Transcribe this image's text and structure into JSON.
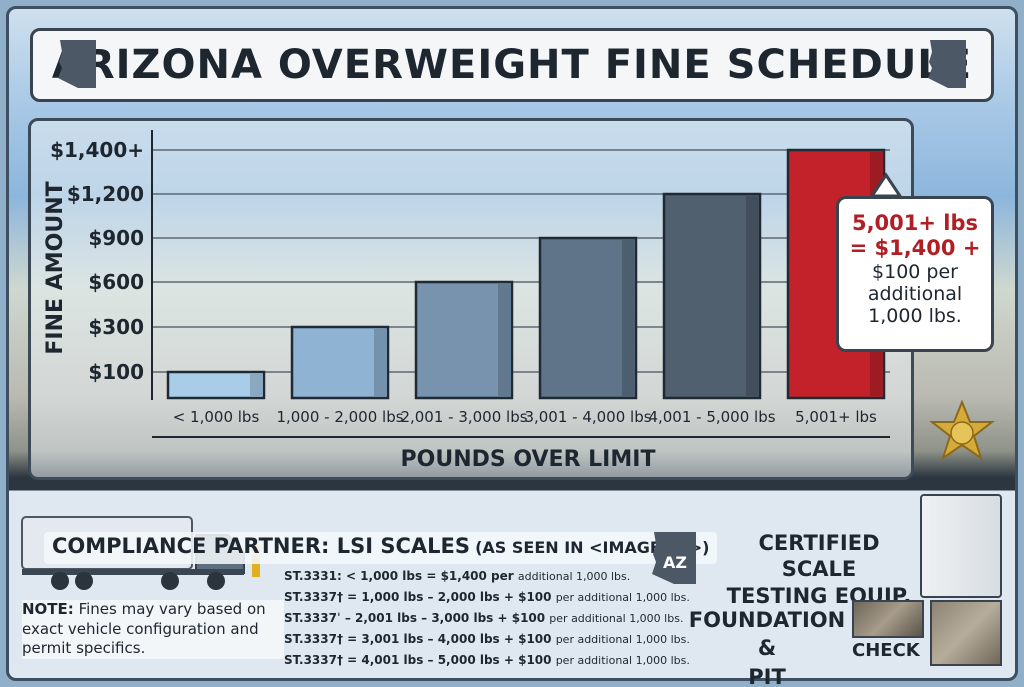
{
  "header": {
    "title": "ARIZONA OVERWEIGHT FINE SCHEDULE"
  },
  "chart_data": {
    "type": "bar",
    "title": "ARIZONA OVERWEIGHT FINE SCHEDULE",
    "xlabel": "POUNDS OVER LIMIT",
    "ylabel": "FINE AMOUNT",
    "categories": [
      "< 1,000 lbs",
      "1,000 - 2,000 lbs",
      "2,001 - 3,000 lbs",
      "3,001 - 4,000 lbs",
      "4,001 - 5,000 lbs",
      "5,001+ lbs"
    ],
    "values": [
      100,
      300,
      600,
      900,
      1200,
      1400
    ],
    "y_ticks": [
      100,
      300,
      600,
      900,
      1200,
      1400
    ],
    "y_tick_labels": [
      "$100",
      "$300",
      "$600",
      "$900",
      "$1,200",
      "$1,400+"
    ],
    "highlight_index": 5,
    "colors": {
      "bar_0": "#a9cde9",
      "bar_1": "#8fb3d3",
      "bar_2": "#7793ae",
      "bar_3": "#5f7488",
      "bar_4": "#51606f",
      "bar_highlight": "#c3222a"
    },
    "grid": true
  },
  "callout": {
    "line1": "5,001+ lbs",
    "line2": "= $1,400 +",
    "line3": "$100 per",
    "line4": "additional",
    "line5": "1,000 lbs."
  },
  "footer": {
    "partner_main": "COMPLIANCE PARTNER: LSI SCALES",
    "partner_sub": "(AS SEEN IN <IMAGE 37>)",
    "note_label": "NOTE:",
    "note_text": " Fines may vary based on exact vehicle configuration and permit specifics.",
    "statutes": [
      {
        "prefix": "ST.3331: < 1,000 lbs = $1,400 per ",
        "suffix": " additional 1,000 lbs."
      },
      {
        "prefix": "ST.3337† = 1,000 lbs – 2,000 lbs + $100 ",
        "suffix": "per additional 1,000 lbs."
      },
      {
        "prefix": "ST.3337ˈ – 2,001 lbs – 3,000 lbs + $100 ",
        "suffix": "per additional 1,000 lbs."
      },
      {
        "prefix": "ST.3337† = 3,001 lbs – 4,000 lbs + $100 ",
        "suffix": "per additional 1,000 lbs."
      },
      {
        "prefix": "ST.3337† = 4,001 lbs – 5,000 lbs + $100 ",
        "suffix": "per additional 1,000 lbs."
      }
    ],
    "az_badge": "AZ",
    "certified_line1": "CERTIFIED SCALE",
    "certified_line2": "TESTING EQUIP.",
    "foundation_line1": "FOUNDATION &",
    "foundation_line2": "PIT INSPECTION",
    "check": "CHECK"
  },
  "icons": [
    "arizona-state-icon",
    "truck-icon",
    "sheriff-badge-icon",
    "test-weight-icon",
    "scale-indicator-icon"
  ]
}
